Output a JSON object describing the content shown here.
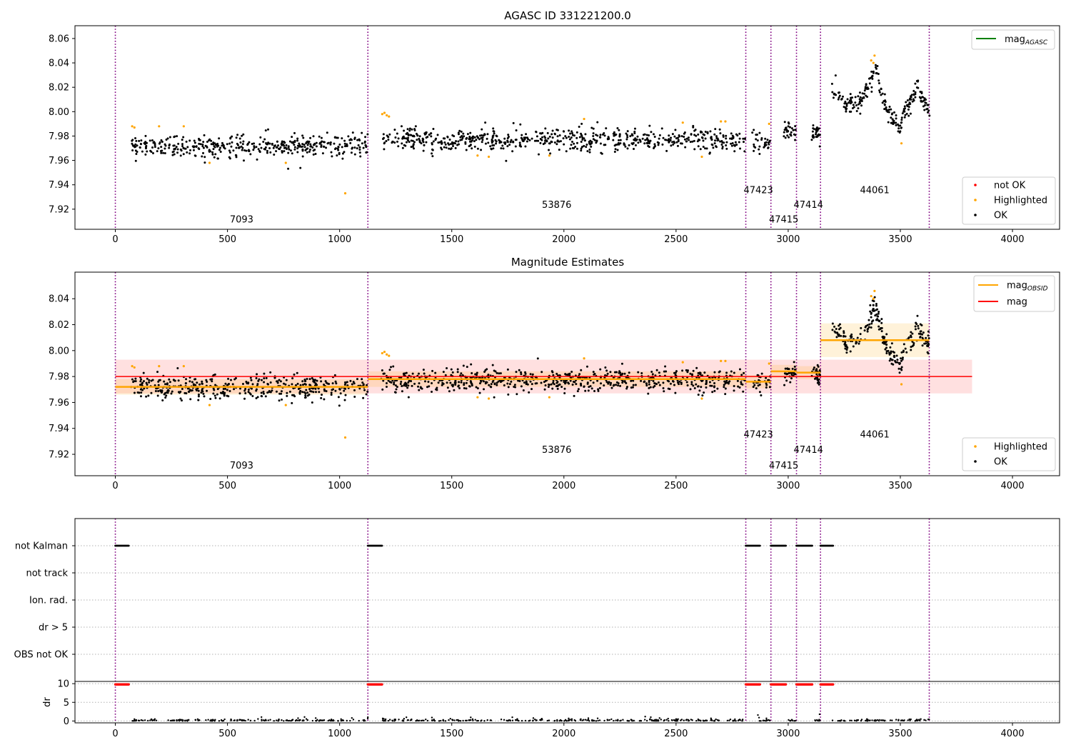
{
  "figure": {
    "title": "AGASC ID 331221200.0"
  },
  "chart_data": [
    {
      "type": "scatter",
      "title": "AGASC ID 331221200.0",
      "xlim": [
        -180,
        4210
      ],
      "ylim": [
        7.9035,
        8.0705
      ],
      "xticks": [
        0,
        500,
        1000,
        1500,
        2000,
        2500,
        3000,
        3500,
        4000
      ],
      "yticks": [
        7.92,
        7.94,
        7.96,
        7.98,
        8.0,
        8.02,
        8.04,
        8.06
      ],
      "ytick_labels": [
        "7.92",
        "7.94",
        "7.96",
        "7.98",
        "8.00",
        "8.02",
        "8.04",
        "8.06"
      ],
      "obsid_boundaries": [
        0,
        1126,
        2811,
        2923,
        3037,
        3144,
        3629
      ],
      "obsid_labels": [
        {
          "label": "7093",
          "x": 563,
          "y": 7.909
        },
        {
          "label": "53876",
          "x": 1968,
          "y": 7.921
        },
        {
          "label": "47423",
          "x": 2867,
          "y": 7.933
        },
        {
          "label": "47415",
          "x": 2980,
          "y": 7.909
        },
        {
          "label": "47414",
          "x": 3090,
          "y": 7.921
        },
        {
          "label": "44061",
          "x": 3386,
          "y": 7.933
        }
      ],
      "legend_upper": {
        "placement": "upper right",
        "entries": [
          {
            "label": "mag",
            "subscript": "AGASC",
            "color": "#008000"
          }
        ]
      },
      "legend_lower": {
        "placement": "lower right",
        "entries": [
          {
            "label": "not OK",
            "color": "#ff0000"
          },
          {
            "label": "Highlighted",
            "color": "#ffa500"
          },
          {
            "label": "OK",
            "color": "#000000"
          }
        ]
      },
      "series": [
        {
          "name": "OK",
          "color": "#000000",
          "segments": [
            {
              "x": [
                70,
                1126
              ],
              "mean": 7.972,
              "std": 0.0045,
              "n": 420
            },
            {
              "x": [
                1185,
                2810
              ],
              "mean": 7.977,
              "std": 0.0045,
              "n": 640
            },
            {
              "x": [
                2840,
                2922
              ],
              "mean": 7.975,
              "std": 0.0045,
              "n": 30
            },
            {
              "x": [
                2980,
                3036
              ],
              "mean": 7.984,
              "std": 0.004,
              "n": 30
            },
            {
              "x": [
                3105,
                3143
              ],
              "mean": 7.982,
              "std": 0.004,
              "n": 28
            }
          ],
          "wave": {
            "x": [
              3190,
              3630
            ],
            "points": [
              [
                3190,
                8.022
              ],
              [
                3215,
                8.015
              ],
              [
                3240,
                8.01
              ],
              [
                3260,
                8.004
              ],
              [
                3280,
                8.008
              ],
              [
                3300,
                8.006
              ],
              [
                3330,
                8.01
              ],
              [
                3360,
                8.022
              ],
              [
                3383,
                8.035
              ],
              [
                3400,
                8.028
              ],
              [
                3420,
                8.01
              ],
              [
                3440,
                8.001
              ],
              [
                3460,
                7.997
              ],
              [
                3480,
                7.992
              ],
              [
                3500,
                7.988
              ],
              [
                3520,
                8.0
              ],
              [
                3540,
                8.006
              ],
              [
                3560,
                8.012
              ],
              [
                3575,
                8.02
              ],
              [
                3590,
                8.016
              ],
              [
                3610,
                8.006
              ],
              [
                3630,
                8.004
              ]
            ],
            "n": 230,
            "std": 0.004
          }
        },
        {
          "name": "Highlighted",
          "color": "#ffa500",
          "points": [
            [
              75,
              7.988
            ],
            [
              85,
              7.987
            ],
            [
              195,
              7.988
            ],
            [
              305,
              7.988
            ],
            [
              420,
              7.958
            ],
            [
              760,
              7.958
            ],
            [
              1025,
              7.933
            ],
            [
              1190,
              7.998
            ],
            [
              1200,
              7.999
            ],
            [
              1210,
              7.997
            ],
            [
              1220,
              7.996
            ],
            [
              1615,
              7.964
            ],
            [
              1665,
              7.963
            ],
            [
              1935,
              7.964
            ],
            [
              2090,
              7.994
            ],
            [
              2530,
              7.991
            ],
            [
              2615,
              7.963
            ],
            [
              2700,
              7.992
            ],
            [
              2720,
              7.992
            ],
            [
              2915,
              7.99
            ],
            [
              3370,
              8.042
            ],
            [
              3385,
              8.046
            ],
            [
              3380,
              8.04
            ],
            [
              3505,
              7.974
            ]
          ]
        }
      ]
    },
    {
      "type": "scatter",
      "title": "Magnitude Estimates",
      "xlim": [
        -180,
        4210
      ],
      "ylim": [
        7.9035,
        8.0605
      ],
      "xticks": [
        0,
        500,
        1000,
        1500,
        2000,
        2500,
        3000,
        3500,
        4000
      ],
      "yticks": [
        7.92,
        7.94,
        7.96,
        7.98,
        8.0,
        8.02,
        8.04
      ],
      "ytick_labels": [
        "7.92",
        "7.94",
        "7.96",
        "7.98",
        "8.00",
        "8.02",
        "8.04"
      ],
      "obsid_boundaries": [
        0,
        1126,
        2811,
        2923,
        3037,
        3144,
        3629
      ],
      "obsid_labels": [
        {
          "label": "7093",
          "x": 563,
          "y": 7.909
        },
        {
          "label": "53876",
          "x": 1968,
          "y": 7.921
        },
        {
          "label": "47423",
          "x": 2867,
          "y": 7.933
        },
        {
          "label": "47415",
          "x": 2980,
          "y": 7.909
        },
        {
          "label": "47414",
          "x": 3090,
          "y": 7.921
        },
        {
          "label": "44061",
          "x": 3386,
          "y": 7.933
        }
      ],
      "mag": {
        "value": 7.98,
        "band": [
          7.967,
          7.993
        ],
        "x": [
          0,
          3820
        ],
        "color": "#ff0000"
      },
      "mag_obsid": [
        {
          "x": [
            0,
            1126
          ],
          "value": 7.972,
          "band": [
            7.966,
            7.978
          ]
        },
        {
          "x": [
            1126,
            2811
          ],
          "value": 7.978,
          "band": [
            7.972,
            7.984
          ]
        },
        {
          "x": [
            2811,
            2923
          ],
          "value": 7.976,
          "band": [
            7.971,
            7.981
          ]
        },
        {
          "x": [
            2923,
            3037
          ],
          "value": 7.984,
          "band": [
            7.979,
            7.989
          ]
        },
        {
          "x": [
            3037,
            3144
          ],
          "value": 7.983,
          "band": [
            7.978,
            7.988
          ]
        },
        {
          "x": [
            3144,
            3629
          ],
          "value": 8.008,
          "band": [
            7.995,
            8.021
          ]
        }
      ],
      "legend_upper": {
        "placement": "upper right",
        "entries": [
          {
            "label": "mag",
            "subscript": "OBSID",
            "color": "#ffa500"
          },
          {
            "label": "mag",
            "subscript": "",
            "color": "#ff0000"
          }
        ]
      },
      "legend_lower": {
        "placement": "lower right",
        "entries": [
          {
            "label": "Highlighted",
            "color": "#ffa500"
          },
          {
            "label": "OK",
            "color": "#000000"
          }
        ]
      }
    },
    {
      "type": "scatter",
      "xlim": [
        -180,
        4210
      ],
      "flag_rows": [
        "not Kalman",
        "not track",
        "Ion. rad.",
        "dr > 5",
        "OBS not OK"
      ],
      "flag_segments": [
        [
          0,
          60
        ],
        [
          1126,
          1190
        ],
        [
          2811,
          2875
        ],
        [
          2923,
          2990
        ],
        [
          3037,
          3110
        ],
        [
          3144,
          3200
        ]
      ],
      "dr_label": "dr",
      "dr_ylim": [
        -0.5,
        10.6
      ],
      "dr_yticks": [
        0,
        5,
        10
      ],
      "dr_red_value": 9.8,
      "xticks": [
        0,
        500,
        1000,
        1500,
        2000,
        2500,
        3000,
        3500,
        4000
      ],
      "obsid_boundaries": [
        0,
        1126,
        2811,
        2923,
        3037,
        3144,
        3629
      ]
    }
  ]
}
